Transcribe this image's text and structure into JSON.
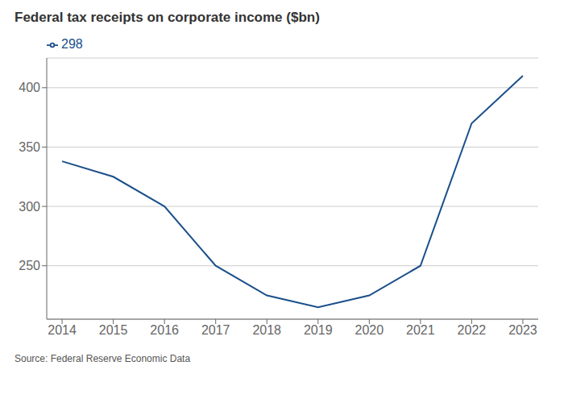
{
  "chart_data": {
    "type": "line",
    "title": "Federal tax receipts on corporate income ($bn)",
    "annotations": [
      "Source: Federal Reserve Economic Data"
    ],
    "x": [
      2014,
      2015,
      2016,
      2017,
      2018,
      2019,
      2020,
      2021,
      2022,
      2023
    ],
    "series": [
      {
        "name": "298",
        "color": "#1a4f8a",
        "values": [
          338,
          325,
          300,
          250,
          225,
          215,
          225,
          250,
          370,
          410
        ]
      }
    ],
    "xlim": [
      2013.7,
      2023.3
    ],
    "xticks": [
      2014,
      2015,
      2016,
      2017,
      2018,
      2019,
      2020,
      2021,
      2022,
      2023
    ],
    "ylim": [
      205,
      425
    ],
    "yticks": [
      250,
      300,
      350,
      400
    ],
    "grid": true,
    "legend": "upper left"
  }
}
